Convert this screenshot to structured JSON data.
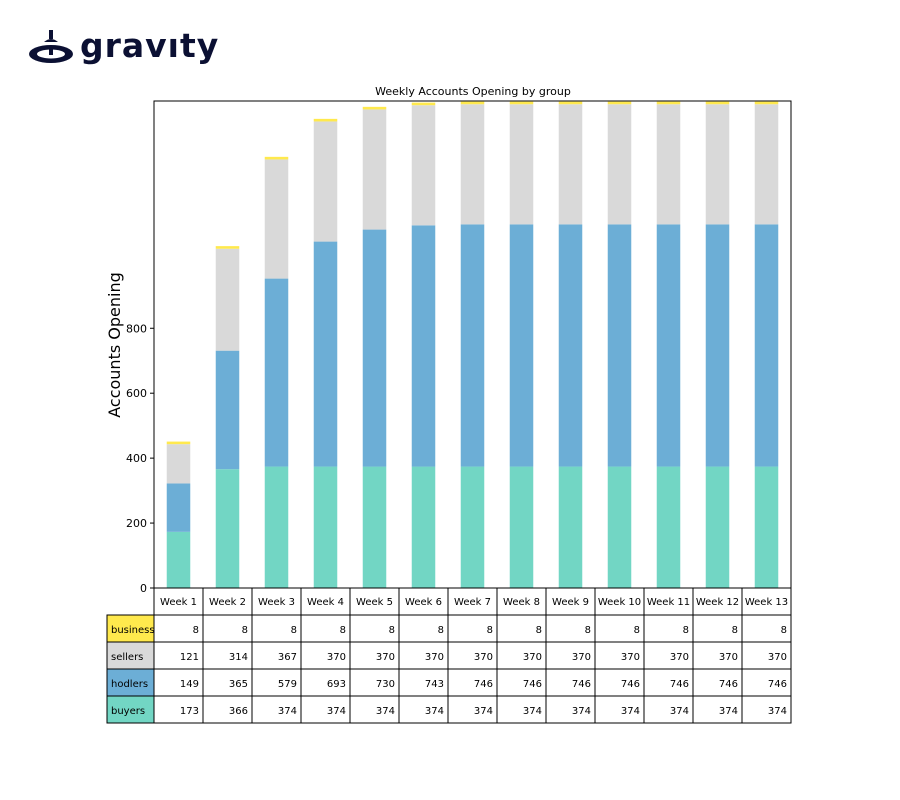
{
  "brand": {
    "name": "gravıty",
    "color": "#0b1033"
  },
  "chart_data": {
    "type": "bar",
    "stacked": true,
    "title": "Weekly Accounts Opening by group",
    "xlabel": "",
    "ylabel": "Accounts Opening",
    "ylim": [
      0,
      1500
    ],
    "yticks": [
      0,
      200,
      400,
      600,
      800
    ],
    "categories": [
      "Week 1",
      "Week 2",
      "Week 3",
      "Week 4",
      "Week 5",
      "Week 6",
      "Week 7",
      "Week 8",
      "Week 9",
      "Week 10",
      "Week 11",
      "Week 12",
      "Week 13"
    ],
    "series": [
      {
        "name": "buyers",
        "color": "#72d6c4",
        "values": [
          173,
          366,
          374,
          374,
          374,
          374,
          374,
          374,
          374,
          374,
          374,
          374,
          374
        ]
      },
      {
        "name": "hodlers",
        "color": "#6caed6",
        "values": [
          149,
          365,
          579,
          693,
          730,
          743,
          746,
          746,
          746,
          746,
          746,
          746,
          746
        ]
      },
      {
        "name": "sellers",
        "color": "#d9d9d9",
        "values": [
          121,
          314,
          367,
          370,
          370,
          370,
          370,
          370,
          370,
          370,
          370,
          370,
          370
        ]
      },
      {
        "name": "business",
        "color": "#ffe94d",
        "values": [
          8,
          8,
          8,
          8,
          8,
          8,
          8,
          8,
          8,
          8,
          8,
          8,
          8
        ]
      }
    ],
    "table_row_order": [
      "business",
      "sellers",
      "hodlers",
      "buyers"
    ],
    "grid": false,
    "legend": "table-below"
  }
}
